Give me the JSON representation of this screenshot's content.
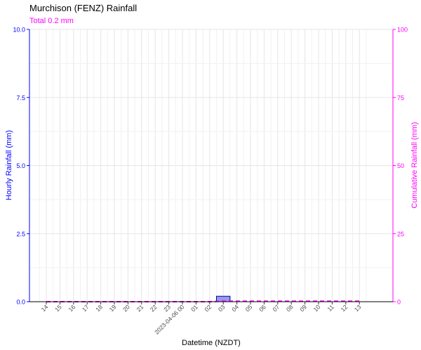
{
  "chart_data": {
    "type": "bar",
    "title": "Murchison (FENZ) Rainfall",
    "subtitle": "Total 0.2 mm",
    "xlabel": "Datetime (NZDT)",
    "ylabel_left": "Hourly Rainfall (mm)",
    "ylabel_right": "Cumulative Rainfall (mm)",
    "ylim_left": [
      0,
      10
    ],
    "ylim_right": [
      0,
      100
    ],
    "yticks_left": [
      "0.0",
      "2.5",
      "5.0",
      "7.5",
      "10.0"
    ],
    "yticks_right": [
      "0",
      "25",
      "50",
      "75",
      "100"
    ],
    "grid": true,
    "categories": [
      "14",
      "15",
      "16",
      "17",
      "18",
      "19",
      "20",
      "21",
      "22",
      "23",
      "2023-04-06 00",
      "01",
      "02",
      "03",
      "04",
      "05",
      "06",
      "07",
      "08",
      "09",
      "10",
      "11",
      "12",
      "13"
    ],
    "series": [
      {
        "kind": "bar",
        "axis": "left",
        "values": [
          0,
          0,
          0,
          0,
          0,
          0,
          0,
          0,
          0,
          0,
          0,
          0,
          0,
          0.2,
          0,
          0,
          0,
          0,
          0,
          0,
          0,
          0,
          0,
          0
        ]
      },
      {
        "kind": "line",
        "axis": "right",
        "values": [
          0,
          0,
          0,
          0,
          0,
          0,
          0,
          0,
          0,
          0,
          0,
          0,
          0,
          0.2,
          0.2,
          0.2,
          0.2,
          0.2,
          0.2,
          0.2,
          0.2,
          0.2,
          0.2,
          0.2
        ]
      }
    ],
    "colors": {
      "left_axis": "#0000ff",
      "right_axis": "#ff00ff",
      "bar_fill": "#9999ee",
      "bar_stroke": "#0000aa",
      "cumulative_line": "#ff00ff",
      "grid": "#e5e5e5"
    }
  }
}
